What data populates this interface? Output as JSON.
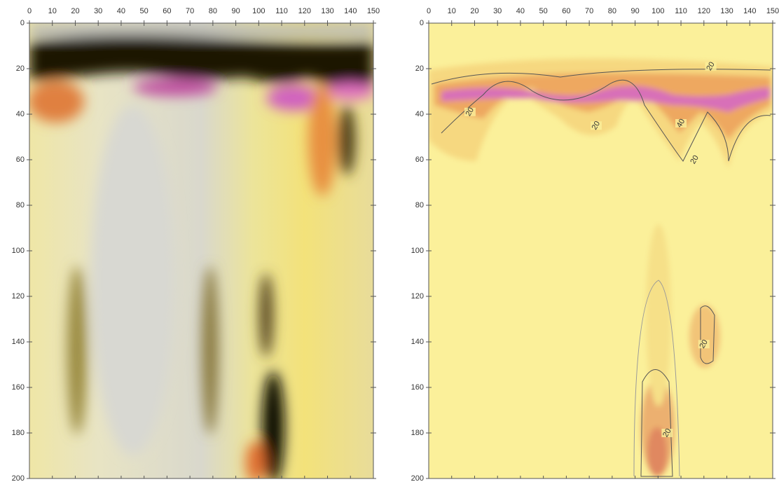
{
  "chart_data": [
    {
      "type": "image",
      "xlim": [
        0,
        150
      ],
      "ylim": [
        0,
        200
      ],
      "y_reversed": true,
      "xticks": [
        0,
        10,
        20,
        30,
        40,
        50,
        60,
        70,
        80,
        90,
        100,
        110,
        120,
        130,
        140,
        150
      ],
      "yticks": [
        0,
        20,
        40,
        60,
        80,
        100,
        120,
        140,
        160,
        180,
        200
      ]
    },
    {
      "type": "contour",
      "xlim": [
        0,
        150
      ],
      "ylim": [
        0,
        200
      ],
      "y_reversed": true,
      "xticks": [
        0,
        10,
        20,
        30,
        40,
        50,
        60,
        70,
        80,
        90,
        100,
        110,
        120,
        130,
        140,
        150
      ],
      "yticks": [
        0,
        20,
        40,
        60,
        80,
        100,
        120,
        140,
        160,
        180,
        200
      ],
      "annotations": [
        {
          "text": "20",
          "x": 18,
          "y": 39
        },
        {
          "text": "20",
          "x": 73,
          "y": 45
        },
        {
          "text": "40",
          "x": 110,
          "y": 44
        },
        {
          "text": "20",
          "x": 116,
          "y": 60
        },
        {
          "text": "20",
          "x": 123,
          "y": 19
        },
        {
          "text": "20",
          "x": 120,
          "y": 141
        },
        {
          "text": "20",
          "x": 104,
          "y": 180
        }
      ]
    }
  ]
}
